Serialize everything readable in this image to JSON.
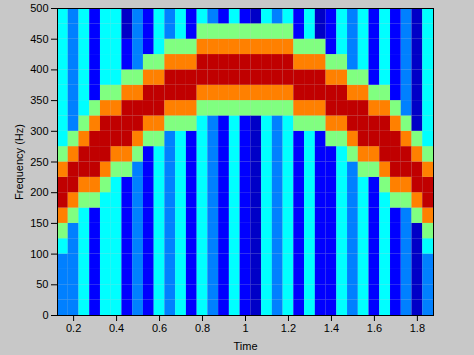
{
  "chart_data": {
    "type": "heatmap",
    "x_label": "Time",
    "y_label": "Frequency (Hz)",
    "xlim": [
      0.125,
      1.875
    ],
    "ylim": [
      0,
      500
    ],
    "xticks": [
      0.2,
      0.4,
      0.6,
      0.8,
      1,
      1.2,
      1.4,
      1.6,
      1.8
    ],
    "yticks": [
      0,
      50,
      100,
      150,
      200,
      250,
      300,
      350,
      400,
      450,
      500
    ],
    "zlim": [
      0,
      10
    ],
    "x": [
      0.15,
      0.2,
      0.25,
      0.3,
      0.35,
      0.4,
      0.45,
      0.5,
      0.55,
      0.6,
      0.65,
      0.7,
      0.75,
      0.8,
      0.85,
      0.9,
      0.95,
      1,
      1.05,
      1.1,
      1.15,
      1.2,
      1.25,
      1.3,
      1.35,
      1.4,
      1.45,
      1.5,
      1.55,
      1.6,
      1.65,
      1.7,
      1.75,
      1.8,
      1.85
    ],
    "y": [
      12.5,
      37.5,
      62.5,
      87.5,
      112.5,
      137.5,
      162.5,
      187.5,
      212.5,
      237.5,
      262.5,
      287.5,
      312.5,
      337.5,
      362.5,
      387.5,
      412.5,
      437.5,
      462.5,
      487.5
    ],
    "z": [
      [
        3,
        3,
        3,
        3,
        4,
        5,
        7,
        9,
        9,
        7,
        5,
        4,
        4,
        4,
        4,
        4,
        4,
        4,
        4,
        4
      ],
      [
        3,
        3,
        3,
        3,
        3,
        3,
        5,
        7,
        9,
        9,
        7,
        5,
        3,
        3,
        3,
        3,
        3,
        3,
        3,
        3
      ],
      [
        4,
        4,
        4,
        4,
        4,
        4,
        4,
        5,
        7,
        9,
        9,
        7,
        5,
        4,
        4,
        4,
        4,
        4,
        4,
        4
      ],
      [
        2,
        2,
        2,
        2,
        2,
        2,
        2,
        5,
        7,
        9,
        9,
        9,
        7,
        5,
        2,
        2,
        2,
        2,
        2,
        2
      ],
      [
        4,
        4,
        4,
        4,
        4,
        4,
        4,
        4,
        5,
        7,
        9,
        9,
        9,
        7,
        5,
        4,
        4,
        4,
        4,
        4
      ],
      [
        4,
        4,
        4,
        4,
        4,
        4,
        4,
        4,
        4,
        5,
        7,
        9,
        9,
        7,
        5,
        4,
        4,
        4,
        4,
        4
      ],
      [
        2,
        2,
        2,
        2,
        2,
        2,
        2,
        2,
        2,
        5,
        7,
        9,
        9,
        9,
        7,
        5,
        2,
        2,
        1,
        1
      ],
      [
        3,
        3,
        3,
        3,
        3,
        3,
        3,
        3,
        3,
        3,
        5,
        7,
        9,
        9,
        7,
        5,
        3,
        3,
        3,
        3
      ],
      [
        2,
        2,
        2,
        2,
        2,
        2,
        2,
        2,
        2,
        2,
        2,
        5,
        7,
        9,
        9,
        7,
        5,
        2,
        2,
        2
      ],
      [
        4,
        4,
        4,
        4,
        4,
        4,
        4,
        4,
        4,
        4,
        4,
        5,
        7,
        9,
        9,
        7,
        5,
        4,
        4,
        4
      ],
      [
        3,
        3,
        3,
        3,
        3,
        3,
        3,
        3,
        3,
        3,
        3,
        3,
        5,
        7,
        9,
        9,
        7,
        5,
        3,
        3
      ],
      [
        4,
        4,
        4,
        4,
        4,
        4,
        4,
        4,
        4,
        4,
        4,
        4,
        5,
        7,
        9,
        9,
        7,
        5,
        4,
        4
      ],
      [
        2,
        2,
        2,
        2,
        2,
        2,
        2,
        2,
        2,
        2,
        2,
        2,
        5,
        7,
        9,
        9,
        7,
        5,
        2,
        2
      ],
      [
        4,
        4,
        4,
        4,
        4,
        4,
        4,
        4,
        4,
        4,
        4,
        4,
        4,
        5,
        7,
        9,
        9,
        7,
        5,
        4
      ],
      [
        3,
        3,
        3,
        3,
        3,
        3,
        3,
        3,
        3,
        3,
        3,
        3,
        3,
        5,
        7,
        9,
        9,
        7,
        5,
        3
      ],
      [
        2,
        2,
        2,
        2,
        2,
        2,
        2,
        2,
        2,
        2,
        2,
        2,
        2,
        5,
        7,
        9,
        9,
        7,
        5,
        2
      ],
      [
        4,
        4,
        4,
        4,
        4,
        4,
        4,
        4,
        4,
        4,
        4,
        4,
        4,
        5,
        7,
        9,
        9,
        7,
        5,
        4
      ],
      [
        2,
        2,
        2,
        2,
        2,
        2,
        2,
        2,
        2,
        2,
        2,
        2,
        2,
        5,
        7,
        9,
        9,
        7,
        5,
        2
      ],
      [
        1,
        1,
        1,
        1,
        1,
        1,
        1,
        1,
        1,
        1,
        1,
        1,
        1,
        5,
        7,
        9,
        9,
        7,
        5,
        1
      ],
      [
        4,
        4,
        4,
        4,
        4,
        4,
        4,
        4,
        4,
        4,
        4,
        4,
        4,
        5,
        7,
        9,
        9,
        7,
        5,
        4
      ],
      [
        3,
        3,
        3,
        3,
        3,
        3,
        3,
        3,
        3,
        3,
        3,
        3,
        3,
        5,
        7,
        9,
        9,
        7,
        5,
        3
      ],
      [
        4,
        4,
        4,
        4,
        4,
        4,
        4,
        4,
        4,
        4,
        4,
        4,
        4,
        5,
        7,
        9,
        9,
        7,
        5,
        4
      ],
      [
        2,
        2,
        2,
        2,
        2,
        2,
        2,
        2,
        2,
        2,
        2,
        2,
        5,
        7,
        9,
        9,
        7,
        5,
        2,
        2
      ],
      [
        4,
        4,
        4,
        4,
        4,
        4,
        4,
        4,
        4,
        4,
        4,
        4,
        5,
        7,
        9,
        9,
        7,
        5,
        4,
        4
      ],
      [
        2,
        2,
        2,
        2,
        2,
        2,
        2,
        2,
        2,
        2,
        2,
        2,
        5,
        7,
        9,
        9,
        7,
        5,
        1,
        1
      ],
      [
        2,
        2,
        2,
        2,
        2,
        2,
        2,
        2,
        2,
        2,
        2,
        5,
        7,
        9,
        9,
        7,
        5,
        2,
        2,
        2
      ],
      [
        4,
        4,
        4,
        4,
        4,
        4,
        4,
        4,
        4,
        4,
        4,
        5,
        7,
        9,
        9,
        7,
        5,
        4,
        4,
        4
      ],
      [
        3,
        3,
        3,
        3,
        3,
        3,
        3,
        3,
        3,
        3,
        5,
        7,
        9,
        9,
        7,
        5,
        3,
        3,
        3,
        3
      ],
      [
        4,
        4,
        4,
        4,
        4,
        4,
        4,
        4,
        4,
        5,
        7,
        9,
        9,
        9,
        7,
        5,
        4,
        4,
        4,
        4
      ],
      [
        2,
        2,
        2,
        2,
        2,
        2,
        2,
        2,
        2,
        5,
        7,
        9,
        9,
        7,
        5,
        2,
        2,
        2,
        2,
        2
      ],
      [
        4,
        4,
        4,
        4,
        4,
        4,
        4,
        4,
        5,
        7,
        9,
        9,
        9,
        7,
        5,
        4,
        4,
        4,
        4,
        4
      ],
      [
        2,
        2,
        2,
        2,
        2,
        2,
        2,
        5,
        7,
        9,
        9,
        9,
        7,
        5,
        2,
        2,
        2,
        2,
        2,
        2
      ],
      [
        3,
        3,
        3,
        3,
        3,
        3,
        3,
        5,
        7,
        9,
        9,
        7,
        5,
        3,
        3,
        3,
        3,
        3,
        3,
        3
      ],
      [
        1,
        1,
        1,
        1,
        1,
        1,
        5,
        7,
        9,
        9,
        7,
        5,
        1,
        1,
        1,
        1,
        1,
        1,
        1,
        1
      ],
      [
        3,
        3,
        3,
        3,
        4,
        5,
        7,
        9,
        9,
        7,
        5,
        4,
        4,
        4,
        4,
        4,
        4,
        4,
        4,
        4
      ]
    ]
  }
}
